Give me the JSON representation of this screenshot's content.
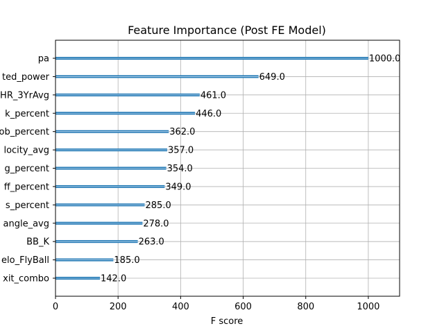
{
  "chart_data": {
    "type": "bar",
    "orientation": "horizontal",
    "title": "Feature Importance (Post FE Model)",
    "xlabel": "F score",
    "ylabel": "",
    "xlim": [
      0,
      1100
    ],
    "xticks": [
      0,
      200,
      400,
      600,
      800,
      1000
    ],
    "grid": true,
    "bar_color": "#1f77b4",
    "categories": [
      "pa",
      "ted_power",
      "HR_3YrAvg",
      "k_percent",
      "ob_percent",
      "locity_avg",
      "g_percent",
      "ff_percent",
      "s_percent",
      "angle_avg",
      "BB_K",
      "elo_FlyBall",
      "xit_combo"
    ],
    "values": [
      1000.0,
      649.0,
      461.0,
      446.0,
      362.0,
      357.0,
      354.0,
      349.0,
      285.0,
      278.0,
      263.0,
      185.0,
      142.0
    ],
    "value_labels": [
      "1000.0",
      "649.0",
      "461.0",
      "446.0",
      "362.0",
      "357.0",
      "354.0",
      "349.0",
      "285.0",
      "278.0",
      "263.0",
      "185.0",
      "142.0"
    ]
  }
}
